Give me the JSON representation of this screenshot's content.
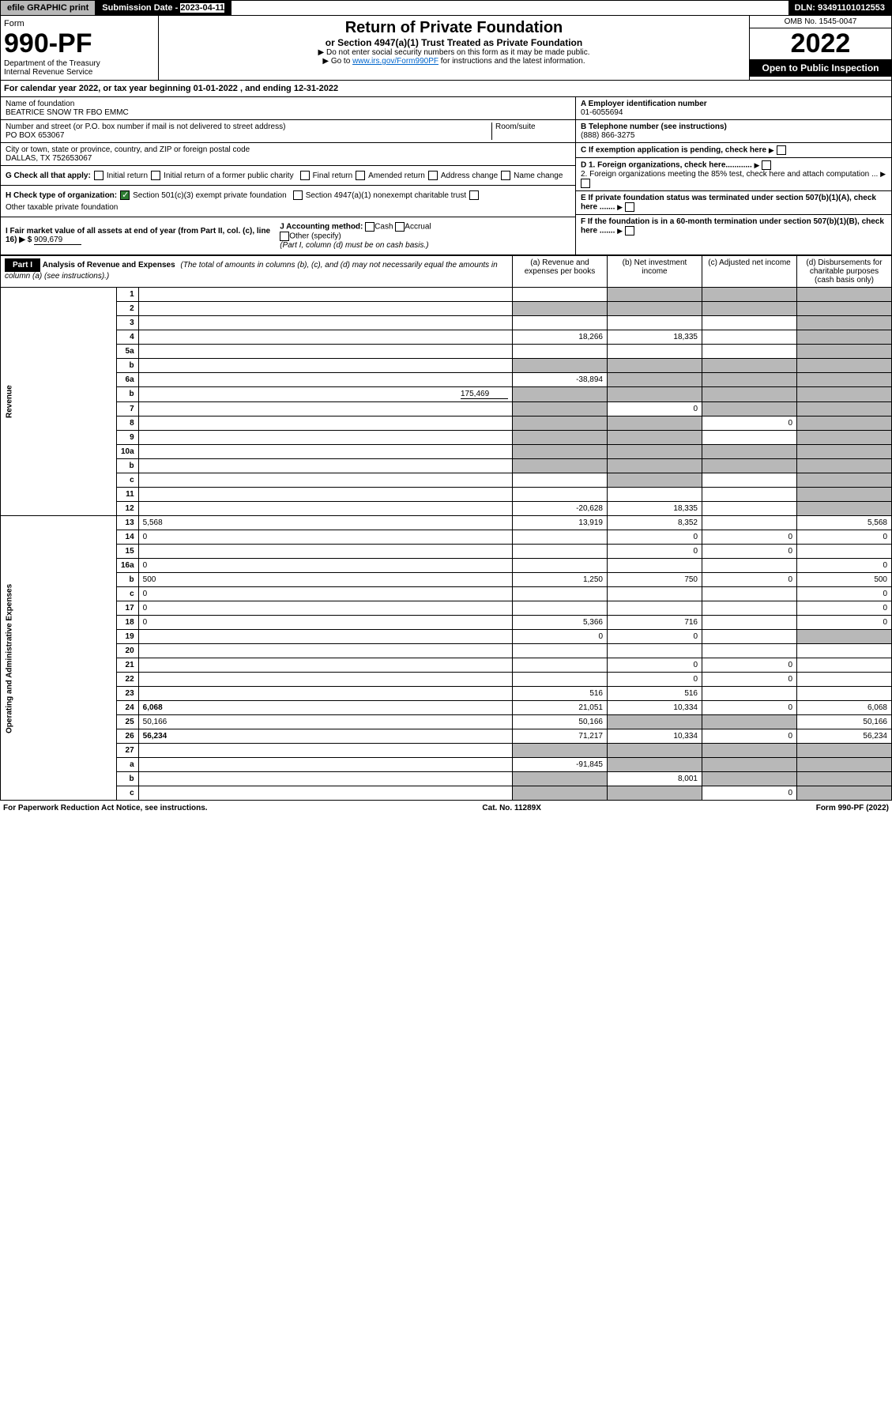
{
  "header": {
    "efile": "efile GRAPHIC print",
    "sub_date_label": "Submission Date - ",
    "sub_date": "2023-04-11",
    "dln_label": "DLN: ",
    "dln": "93491101012553"
  },
  "form": {
    "form_label": "Form",
    "number": "990-PF",
    "dept1": "Department of the Treasury",
    "dept2": "Internal Revenue Service",
    "title": "Return of Private Foundation",
    "subtitle": "or Section 4947(a)(1) Trust Treated as Private Foundation",
    "instr1": "▶ Do not enter social security numbers on this form as it may be made public.",
    "instr2_pre": "▶ Go to ",
    "instr2_link": "www.irs.gov/Form990PF",
    "instr2_post": " for instructions and the latest information.",
    "omb": "OMB No. 1545-0047",
    "year": "2022",
    "open": "Open to Public Inspection"
  },
  "calendar": {
    "text": "For calendar year 2022, or tax year beginning ",
    "begin": "01-01-2022",
    "mid": " , and ending ",
    "end": "12-31-2022"
  },
  "entity": {
    "name_label": "Name of foundation",
    "name": "BEATRICE SNOW TR FBO EMMC",
    "addr_label": "Number and street (or P.O. box number if mail is not delivered to street address)",
    "room_label": "Room/suite",
    "addr": "PO BOX 653067",
    "city_label": "City or town, state or province, country, and ZIP or foreign postal code",
    "city": "DALLAS, TX  752653067",
    "ein_label": "A Employer identification number",
    "ein": "01-6055694",
    "phone_label": "B Telephone number (see instructions)",
    "phone": "(888) 866-3275",
    "c_label": "C If exemption application is pending, check here",
    "d1": "D 1. Foreign organizations, check here............",
    "d2": "2. Foreign organizations meeting the 85% test, check here and attach computation ...",
    "e_label": "E If private foundation status was terminated under section 507(b)(1)(A), check here .......",
    "f_label": "F If the foundation is in a 60-month termination under section 507(b)(1)(B), check here .......",
    "g_label": "G Check all that apply:",
    "g_opts": [
      "Initial return",
      "Initial return of a former public charity",
      "Final return",
      "Amended return",
      "Address change",
      "Name change"
    ],
    "h_label": "H Check type of organization:",
    "h1": "Section 501(c)(3) exempt private foundation",
    "h2": "Section 4947(a)(1) nonexempt charitable trust",
    "h3": "Other taxable private foundation",
    "i_label": "I Fair market value of all assets at end of year (from Part II, col. (c), line 16) ▶ $",
    "i_value": "909,679",
    "j_label": "J Accounting method:",
    "j_opts": [
      "Cash",
      "Accrual"
    ],
    "j_other": "Other (specify)",
    "j_note": "(Part I, column (d) must be on cash basis.)"
  },
  "part1": {
    "label": "Part I",
    "title": "Analysis of Revenue and Expenses",
    "note": "(The total of amounts in columns (b), (c), and (d) may not necessarily equal the amounts in column (a) (see instructions).)",
    "col_a": "(a) Revenue and expenses per books",
    "col_b": "(b) Net investment income",
    "col_c": "(c) Adjusted net income",
    "col_d": "(d) Disbursements for charitable purposes (cash basis only)",
    "revenue_label": "Revenue",
    "expenses_label": "Operating and Administrative Expenses"
  },
  "rows": [
    {
      "n": "1",
      "d": "",
      "a": "",
      "b": "",
      "c": "",
      "shade": [
        "b",
        "c",
        "d"
      ]
    },
    {
      "n": "2",
      "d": "",
      "a": "",
      "b": "",
      "c": "",
      "shade": [
        "a",
        "b",
        "c",
        "d"
      ]
    },
    {
      "n": "3",
      "d": "",
      "a": "",
      "b": "",
      "c": "",
      "shade": [
        "d"
      ]
    },
    {
      "n": "4",
      "d": "",
      "a": "18,266",
      "b": "18,335",
      "c": "",
      "shade": [
        "d"
      ]
    },
    {
      "n": "5a",
      "d": "",
      "a": "",
      "b": "",
      "c": "",
      "shade": [
        "d"
      ]
    },
    {
      "n": "b",
      "d": "",
      "a": "",
      "b": "",
      "c": "",
      "shade": [
        "a",
        "b",
        "c",
        "d"
      ],
      "inset": true
    },
    {
      "n": "6a",
      "d": "",
      "a": "-38,894",
      "b": "",
      "c": "",
      "shade": [
        "b",
        "c",
        "d"
      ]
    },
    {
      "n": "b",
      "d": "",
      "inline": "175,469",
      "a": "",
      "b": "",
      "c": "",
      "shade": [
        "a",
        "b",
        "c",
        "d"
      ]
    },
    {
      "n": "7",
      "d": "",
      "a": "",
      "b": "0",
      "c": "",
      "shade": [
        "a",
        "c",
        "d"
      ]
    },
    {
      "n": "8",
      "d": "",
      "a": "",
      "b": "",
      "c": "0",
      "shade": [
        "a",
        "b",
        "d"
      ]
    },
    {
      "n": "9",
      "d": "",
      "a": "",
      "b": "",
      "c": "",
      "shade": [
        "a",
        "b",
        "d"
      ]
    },
    {
      "n": "10a",
      "d": "",
      "a": "",
      "b": "",
      "c": "",
      "shade": [
        "a",
        "b",
        "c",
        "d"
      ],
      "inset": true
    },
    {
      "n": "b",
      "d": "",
      "a": "",
      "b": "",
      "c": "",
      "shade": [
        "a",
        "b",
        "c",
        "d"
      ],
      "inset": true
    },
    {
      "n": "c",
      "d": "",
      "a": "",
      "b": "",
      "c": "",
      "shade": [
        "b",
        "d"
      ]
    },
    {
      "n": "11",
      "d": "",
      "a": "",
      "b": "",
      "c": "",
      "shade": [
        "d"
      ]
    },
    {
      "n": "12",
      "d": "",
      "a": "-20,628",
      "b": "18,335",
      "c": "",
      "shade": [
        "d"
      ],
      "bold": true
    },
    {
      "n": "13",
      "d": "5,568",
      "a": "13,919",
      "b": "8,352",
      "c": ""
    },
    {
      "n": "14",
      "d": "0",
      "a": "",
      "b": "0",
      "c": "0"
    },
    {
      "n": "15",
      "d": "",
      "a": "",
      "b": "0",
      "c": "0"
    },
    {
      "n": "16a",
      "d": "0",
      "a": "",
      "b": "",
      "c": ""
    },
    {
      "n": "b",
      "d": "500",
      "a": "1,250",
      "b": "750",
      "c": "0"
    },
    {
      "n": "c",
      "d": "0",
      "a": "",
      "b": "",
      "c": ""
    },
    {
      "n": "17",
      "d": "0",
      "a": "",
      "b": "",
      "c": ""
    },
    {
      "n": "18",
      "d": "0",
      "a": "5,366",
      "b": "716",
      "c": ""
    },
    {
      "n": "19",
      "d": "",
      "a": "0",
      "b": "0",
      "c": "",
      "shade": [
        "d"
      ]
    },
    {
      "n": "20",
      "d": "",
      "a": "",
      "b": "",
      "c": ""
    },
    {
      "n": "21",
      "d": "",
      "a": "",
      "b": "0",
      "c": "0"
    },
    {
      "n": "22",
      "d": "",
      "a": "",
      "b": "0",
      "c": "0"
    },
    {
      "n": "23",
      "d": "",
      "a": "516",
      "b": "516",
      "c": ""
    },
    {
      "n": "24",
      "d": "6,068",
      "a": "21,051",
      "b": "10,334",
      "c": "0",
      "bold": true
    },
    {
      "n": "25",
      "d": "50,166",
      "a": "50,166",
      "b": "",
      "c": "",
      "shade": [
        "b",
        "c"
      ]
    },
    {
      "n": "26",
      "d": "56,234",
      "a": "71,217",
      "b": "10,334",
      "c": "0",
      "bold": true
    },
    {
      "n": "27",
      "d": "",
      "a": "",
      "b": "",
      "c": "",
      "shade": [
        "a",
        "b",
        "c",
        "d"
      ]
    },
    {
      "n": "a",
      "d": "",
      "a": "-91,845",
      "b": "",
      "c": "",
      "shade": [
        "b",
        "c",
        "d"
      ],
      "bold": true
    },
    {
      "n": "b",
      "d": "",
      "a": "",
      "b": "8,001",
      "c": "",
      "shade": [
        "a",
        "c",
        "d"
      ],
      "bold": true
    },
    {
      "n": "c",
      "d": "",
      "a": "",
      "b": "",
      "c": "0",
      "shade": [
        "a",
        "b",
        "d"
      ],
      "bold": true
    }
  ],
  "footer": {
    "left": "For Paperwork Reduction Act Notice, see instructions.",
    "mid": "Cat. No. 11289X",
    "right": "Form 990-PF (2022)"
  }
}
